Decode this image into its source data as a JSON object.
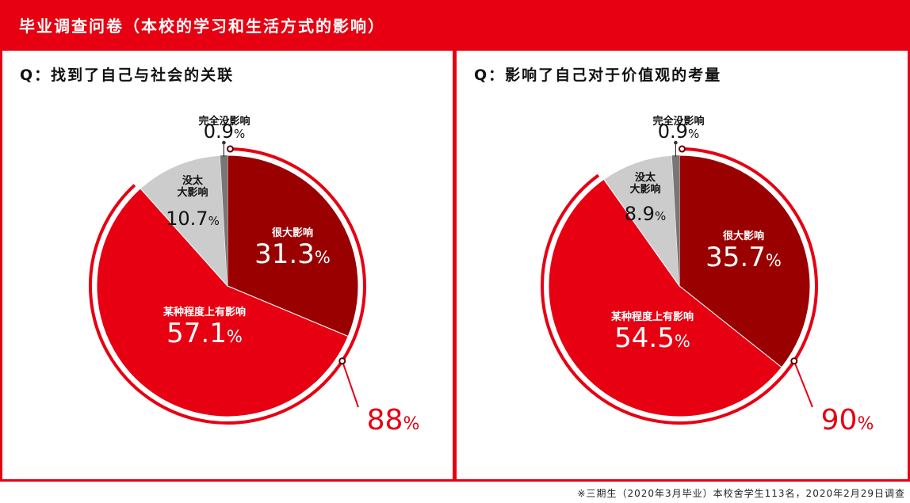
{
  "header": {
    "title": "毕业调查问卷（本校的学习和生活方式的影响）"
  },
  "colors": {
    "brand_red": "#e60012",
    "dark_red": "#9b0000",
    "light_gray": "#cccccc",
    "dark_gray": "#777777"
  },
  "chart_data": [
    {
      "type": "pie",
      "question": "Q：找到了自己与社会的关联",
      "slices": [
        {
          "label": "很大影响",
          "value": 31.3,
          "value_text": "31.3",
          "color": "#9b0000"
        },
        {
          "label": "某种程度上有影响",
          "value": 57.1,
          "value_text": "57.1",
          "color": "#e60012"
        },
        {
          "label": "没太大影响",
          "label_lines": [
            "没太",
            "大影响"
          ],
          "value": 10.7,
          "value_text": "10.7",
          "color": "#cccccc"
        },
        {
          "label": "完全没影响",
          "value": 0.9,
          "value_text": "0.9",
          "color": "#777777"
        }
      ],
      "highlight_total_text": "88",
      "unit": "%"
    },
    {
      "type": "pie",
      "question": "Q：影响了自己对于价值观的考量",
      "slices": [
        {
          "label": "很大影响",
          "value": 35.7,
          "value_text": "35.7",
          "color": "#9b0000"
        },
        {
          "label": "某种程度上有影响",
          "value": 54.5,
          "value_text": "54.5",
          "color": "#e60012"
        },
        {
          "label": "没太大影响",
          "label_lines": [
            "没太",
            "大影响"
          ],
          "value": 8.9,
          "value_text": "8.9",
          "color": "#cccccc"
        },
        {
          "label": "完全没影响",
          "value": 0.9,
          "value_text": "0.9",
          "color": "#777777"
        }
      ],
      "highlight_total_text": "90",
      "unit": "%"
    }
  ],
  "footer": {
    "note": "※三期生（2020年3月毕业）本校舍学生113名，2020年2月29日调查"
  }
}
